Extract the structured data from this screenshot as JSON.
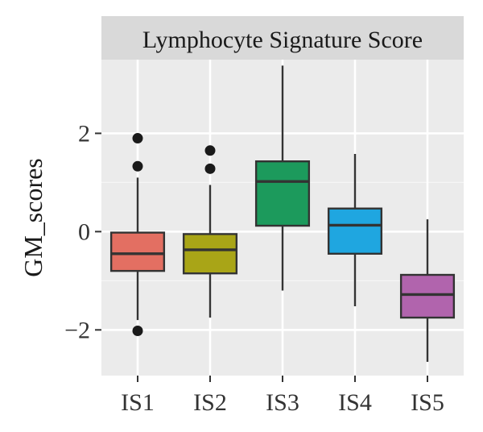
{
  "chart_data": {
    "type": "box",
    "title": "",
    "facet_label": "Lymphocyte Signature Score",
    "xlabel": "",
    "ylabel": "GM_scores",
    "ylim": [
      -2.93,
      3.5
    ],
    "yticks": [
      -2,
      0,
      2
    ],
    "ytick_labels": [
      "−2",
      "0",
      "2"
    ],
    "grid": true,
    "legend": "none",
    "categories": [
      "IS1",
      "IS2",
      "IS3",
      "IS4",
      "IS5"
    ],
    "boxes": [
      {
        "category": "IS1",
        "q1": -0.8,
        "median": -0.45,
        "q3": -0.02,
        "whisker_low": -1.8,
        "whisker_high": 1.1,
        "outliers": [
          1.9,
          1.33,
          -2.02
        ],
        "color": "#e36f62"
      },
      {
        "category": "IS2",
        "q1": -0.85,
        "median": -0.37,
        "q3": -0.05,
        "whisker_low": -1.75,
        "whisker_high": 0.95,
        "outliers": [
          1.65,
          1.28
        ],
        "color": "#a9a517"
      },
      {
        "category": "IS3",
        "q1": 0.12,
        "median": 1.02,
        "q3": 1.43,
        "whisker_low": -1.2,
        "whisker_high": 3.38,
        "outliers": [],
        "color": "#1c9a5c"
      },
      {
        "category": "IS4",
        "q1": -0.45,
        "median": 0.13,
        "q3": 0.47,
        "whisker_low": -1.52,
        "whisker_high": 1.58,
        "outliers": [],
        "color": "#1fa6e0"
      },
      {
        "category": "IS5",
        "q1": -1.75,
        "median": -1.28,
        "q3": -0.88,
        "whisker_low": -2.65,
        "whisker_high": 0.25,
        "outliers": [],
        "color": "#b164ad"
      }
    ]
  }
}
